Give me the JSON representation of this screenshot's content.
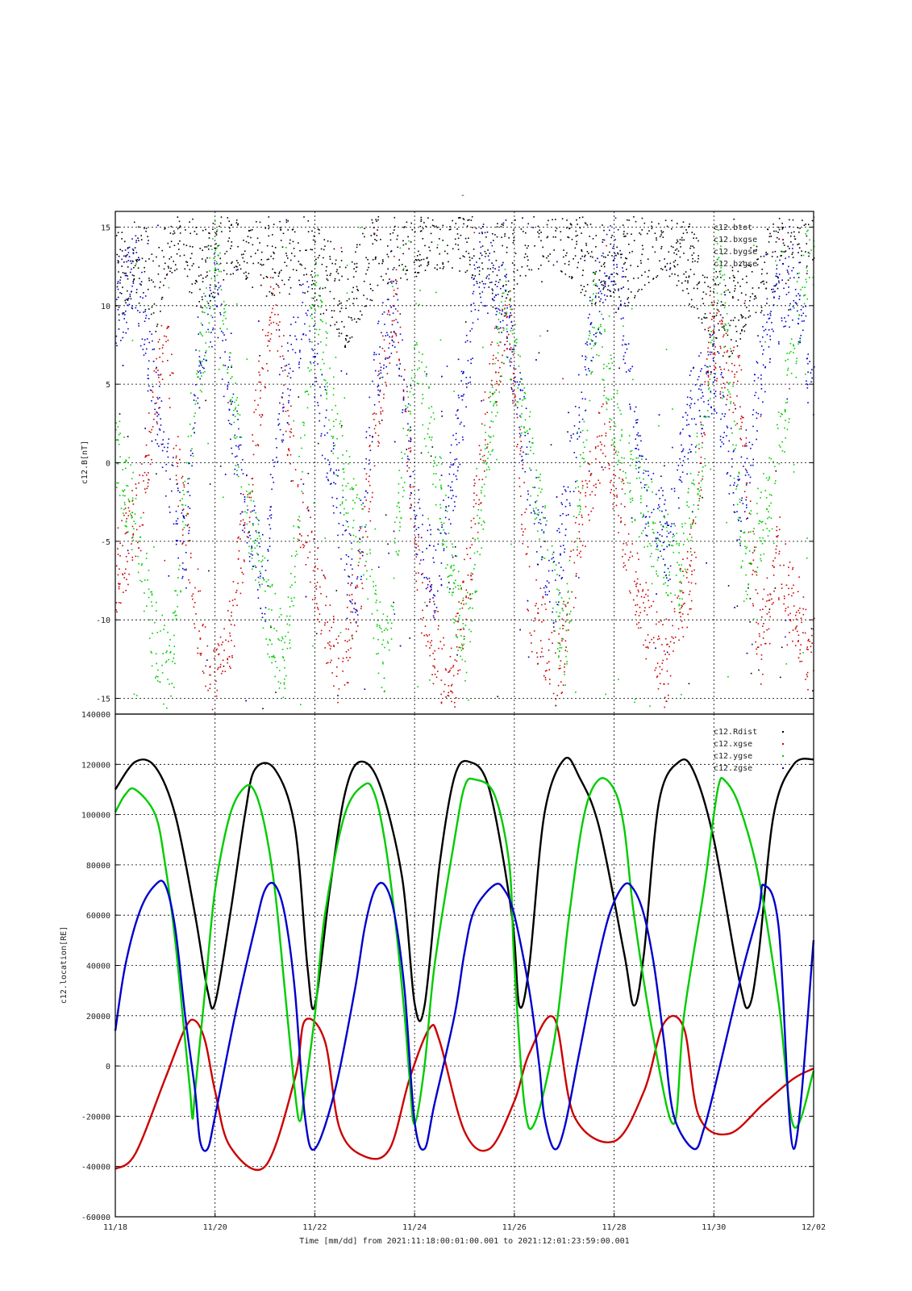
{
  "page_title": "-",
  "time_axis": {
    "tick_labels": [
      "11/18",
      "11/20",
      "11/22",
      "11/24",
      "11/26",
      "11/28",
      "11/30",
      "12/02"
    ],
    "label": "Time [mm/dd]  from 2021:11:18:00:01:00.001  to  2021:12:01:23:59:00.001"
  },
  "chart_data": [
    {
      "type": "scatter",
      "ylabel": "c12.B[nT]",
      "ylim": [
        -16,
        16
      ],
      "yticks": [
        -15,
        -10,
        -5,
        0,
        5,
        10,
        15
      ],
      "xlim_days": [
        0,
        14
      ],
      "grid": true,
      "legend_position": "top-right",
      "series": [
        {
          "name": "c12.btot",
          "color": "#000000",
          "anchors": [
            [
              0.0,
              12
            ],
            [
              0.5,
              13
            ],
            [
              0.8,
              11
            ],
            [
              1.0,
              14
            ],
            [
              1.3,
              15
            ],
            [
              1.7,
              12
            ],
            [
              2.4,
              15
            ],
            [
              2.7,
              14
            ],
            [
              3.0,
              13
            ],
            [
              3.4,
              14
            ],
            [
              4.2,
              12
            ],
            [
              4.6,
              10
            ],
            [
              5.1,
              13
            ],
            [
              5.6,
              14
            ],
            [
              6.3,
              15
            ],
            [
              6.8,
              15
            ],
            [
              7.2,
              14
            ],
            [
              7.5,
              12
            ],
            [
              8.3,
              15
            ],
            [
              8.9,
              15
            ],
            [
              9.5,
              13
            ],
            [
              10.0,
              12
            ],
            [
              11.0,
              15
            ],
            [
              11.8,
              11
            ],
            [
              12.2,
              9
            ],
            [
              13.3,
              14
            ],
            [
              14.0,
              15
            ]
          ]
        },
        {
          "name": "c12.bxgse",
          "color": "#cc0000",
          "anchors": [
            [
              0.0,
              -7
            ],
            [
              0.5,
              -3
            ],
            [
              0.8,
              4
            ],
            [
              1.0,
              9
            ],
            [
              1.3,
              -2
            ],
            [
              1.9,
              -15
            ],
            [
              2.2,
              -13
            ],
            [
              2.5,
              -6
            ],
            [
              2.9,
              5
            ],
            [
              3.2,
              11
            ],
            [
              3.6,
              -2
            ],
            [
              4.5,
              -14
            ],
            [
              4.9,
              -7
            ],
            [
              5.2,
              2
            ],
            [
              5.6,
              11
            ],
            [
              6.1,
              -8
            ],
            [
              6.7,
              -15
            ],
            [
              7.1,
              -6
            ],
            [
              7.5,
              5
            ],
            [
              7.9,
              9
            ],
            [
              8.3,
              -9
            ],
            [
              8.9,
              -13
            ],
            [
              9.3,
              -4
            ],
            [
              9.8,
              2
            ],
            [
              10.5,
              -9
            ],
            [
              11.0,
              -13
            ],
            [
              11.6,
              -6
            ],
            [
              11.9,
              8
            ],
            [
              12.5,
              5
            ],
            [
              12.9,
              -12
            ],
            [
              13.3,
              -6
            ],
            [
              13.9,
              -12
            ]
          ]
        },
        {
          "name": "c12.bygse",
          "color": "#00cc00",
          "anchors": [
            [
              0.0,
              1
            ],
            [
              0.4,
              -4
            ],
            [
              0.7,
              -10
            ],
            [
              1.1,
              -14
            ],
            [
              1.5,
              2
            ],
            [
              2.0,
              13
            ],
            [
              2.5,
              0
            ],
            [
              3.0,
              -9
            ],
            [
              3.4,
              -13
            ],
            [
              4.0,
              11
            ],
            [
              4.5,
              0
            ],
            [
              5.0,
              -6
            ],
            [
              5.4,
              -13
            ],
            [
              6.0,
              8
            ],
            [
              6.5,
              -2
            ],
            [
              7.0,
              -12
            ],
            [
              7.8,
              10
            ],
            [
              8.4,
              -1
            ],
            [
              9.0,
              -12
            ],
            [
              9.6,
              10
            ],
            [
              10.2,
              0
            ],
            [
              10.9,
              -5
            ],
            [
              11.3,
              -7
            ],
            [
              11.8,
              2
            ],
            [
              12.1,
              14
            ],
            [
              12.6,
              -7
            ],
            [
              13.2,
              -1
            ],
            [
              13.9,
              14
            ]
          ]
        },
        {
          "name": "c12.bzgse",
          "color": "#0000cc",
          "anchors": [
            [
              0.0,
              10
            ],
            [
              0.4,
              12
            ],
            [
              0.8,
              4
            ],
            [
              1.1,
              -1
            ],
            [
              1.4,
              -6
            ],
            [
              1.6,
              6
            ],
            [
              2.0,
              11
            ],
            [
              2.5,
              -1
            ],
            [
              3.0,
              -8
            ],
            [
              3.2,
              2
            ],
            [
              3.8,
              10
            ],
            [
              4.3,
              0
            ],
            [
              4.8,
              -9
            ],
            [
              5.2,
              6
            ],
            [
              5.6,
              10
            ],
            [
              6.0,
              -3
            ],
            [
              6.4,
              -8
            ],
            [
              6.8,
              0
            ],
            [
              7.3,
              13
            ],
            [
              7.8,
              10
            ],
            [
              8.4,
              -3
            ],
            [
              8.8,
              -8
            ],
            [
              9.5,
              8
            ],
            [
              10.0,
              14
            ],
            [
              10.6,
              -2
            ],
            [
              11.1,
              -5
            ],
            [
              11.5,
              3
            ],
            [
              12.0,
              6
            ],
            [
              12.5,
              -3
            ],
            [
              13.1,
              9
            ],
            [
              13.6,
              12
            ],
            [
              14.0,
              4
            ]
          ]
        }
      ]
    },
    {
      "type": "line",
      "ylabel": "c12.location[RE]",
      "ylim": [
        -60000,
        140000
      ],
      "yticks": [
        -60000,
        -40000,
        -20000,
        0,
        20000,
        40000,
        60000,
        80000,
        100000,
        120000,
        140000
      ],
      "xlim_days": [
        0,
        14
      ],
      "grid": true,
      "legend_position": "top-right",
      "series": [
        {
          "name": "c12.Rdist",
          "color": "#000000",
          "x": [
            0,
            0.4,
            0.8,
            1.2,
            1.6,
            1.85,
            2.0,
            2.3,
            2.6,
            2.8,
            3.2,
            3.6,
            3.85,
            4.0,
            4.3,
            4.6,
            4.9,
            5.3,
            5.75,
            6.0,
            6.2,
            6.5,
            6.8,
            7.1,
            7.5,
            7.95,
            8.1,
            8.3,
            8.6,
            9.0,
            9.3,
            9.7,
            10.2,
            10.4,
            10.6,
            10.9,
            11.3,
            11.6,
            12.0,
            12.5,
            12.7,
            12.9,
            13.2,
            13.6,
            14.0
          ],
          "y": [
            110000,
            121000,
            119000,
            100000,
            60000,
            30000,
            25000,
            60000,
            100000,
            118000,
            118000,
            95000,
            40000,
            24000,
            70000,
            108000,
            121000,
            112000,
            75000,
            25000,
            24000,
            80000,
            115000,
            121000,
            110000,
            60000,
            24000,
            40000,
            100000,
            122000,
            115000,
            95000,
            45000,
            24000,
            45000,
            105000,
            121000,
            117000,
            90000,
            35000,
            23500,
            45000,
            100000,
            120000,
            122000
          ]
        },
        {
          "name": "c12.xgse",
          "color": "#cc0000",
          "x": [
            0,
            0.4,
            1.0,
            1.4,
            1.6,
            1.8,
            2.0,
            2.3,
            3.0,
            3.6,
            3.8,
            4.2,
            4.5,
            5.0,
            5.5,
            5.9,
            6.3,
            6.5,
            7.0,
            7.5,
            8.0,
            8.3,
            8.8,
            9.2,
            10.0,
            10.6,
            11.0,
            11.4,
            11.7,
            12.3,
            13.0,
            13.6,
            14.0
          ],
          "y": [
            -41000,
            -35000,
            -5000,
            15000,
            18000,
            10000,
            -10000,
            -32000,
            -40000,
            -5000,
            18000,
            10000,
            -25000,
            -36000,
            -33000,
            -5000,
            15000,
            10000,
            -26000,
            -33000,
            -14000,
            5000,
            19000,
            -20000,
            -30000,
            -10000,
            17000,
            15000,
            -20000,
            -27000,
            -15000,
            -5000,
            -1000
          ]
        },
        {
          "name": "c12.ygse",
          "color": "#00cc00",
          "x": [
            0,
            0.2,
            0.4,
            0.8,
            1.0,
            1.2,
            1.4,
            1.5,
            1.55,
            1.6,
            1.8,
            2.0,
            2.3,
            2.6,
            2.8,
            3.0,
            3.2,
            3.4,
            3.6,
            3.7,
            3.8,
            4.0,
            4.2,
            4.6,
            5.0,
            5.2,
            5.4,
            5.6,
            5.8,
            5.9,
            6.0,
            6.2,
            6.4,
            6.8,
            7.0,
            7.2,
            7.6,
            7.9,
            8.0,
            8.2,
            8.4,
            8.8,
            9.1,
            9.4,
            9.7,
            10.0,
            10.2,
            10.4,
            10.8,
            11.2,
            11.4,
            11.8,
            12.0,
            12.1,
            12.2,
            12.5,
            12.9,
            13.3,
            13.6,
            14.0
          ],
          "y": [
            101000,
            108000,
            110000,
            100000,
            80000,
            50000,
            10000,
            -10000,
            -21000,
            -10000,
            30000,
            70000,
            100000,
            111000,
            109000,
            95000,
            70000,
            30000,
            -10000,
            -22000,
            -10000,
            20000,
            60000,
            100000,
            112000,
            108000,
            90000,
            60000,
            20000,
            -5000,
            -23000,
            0,
            40000,
            90000,
            111000,
            114000,
            108000,
            80000,
            40000,
            -15000,
            -23000,
            10000,
            60000,
            100000,
            114000,
            110000,
            95000,
            60000,
            10000,
            -23000,
            20000,
            70000,
            100000,
            112000,
            114000,
            104000,
            75000,
            25000,
            -24000,
            -2000
          ]
        },
        {
          "name": "c12.zgse",
          "color": "#0000cc",
          "x": [
            0,
            0.2,
            0.5,
            0.8,
            1.0,
            1.2,
            1.4,
            1.6,
            1.7,
            1.85,
            2.0,
            2.4,
            2.8,
            3.0,
            3.2,
            3.4,
            3.6,
            3.8,
            4.0,
            4.4,
            4.8,
            5.0,
            5.2,
            5.4,
            5.6,
            5.8,
            6.0,
            6.2,
            6.4,
            6.8,
            7.0,
            7.2,
            7.6,
            7.8,
            8.0,
            8.3,
            8.5,
            8.6,
            8.8,
            9.0,
            9.3,
            9.6,
            9.9,
            10.2,
            10.4,
            10.6,
            10.8,
            11.0,
            11.2,
            11.6,
            11.8,
            12.0,
            12.3,
            12.6,
            12.9,
            13.0,
            13.3,
            13.6,
            14.0
          ],
          "y": [
            14000,
            40000,
            62000,
            72000,
            72000,
            55000,
            20000,
            -10000,
            -30000,
            -33000,
            -20000,
            20000,
            55000,
            70000,
            72000,
            60000,
            30000,
            -20000,
            -33000,
            -10000,
            30000,
            55000,
            70000,
            72000,
            60000,
            30000,
            -22000,
            -33000,
            -15000,
            20000,
            45000,
            62000,
            72000,
            70000,
            60000,
            30000,
            0,
            -20000,
            -33000,
            -25000,
            5000,
            35000,
            60000,
            72000,
            70000,
            60000,
            40000,
            10000,
            -20000,
            -33000,
            -25000,
            -10000,
            15000,
            40000,
            62000,
            72000,
            55000,
            -33000,
            50000
          ]
        }
      ]
    }
  ]
}
